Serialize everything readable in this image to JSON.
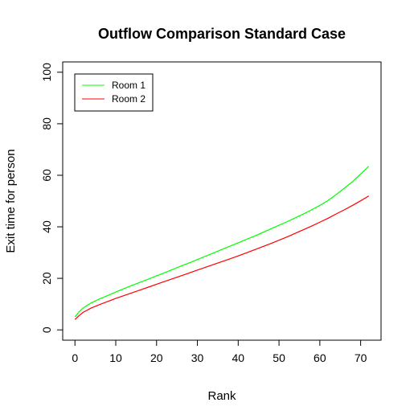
{
  "chart_data": {
    "type": "line",
    "title": "Outflow Comparison Standard Case",
    "xlabel": "Rank",
    "ylabel": "Exit time for person",
    "xlim": [
      -3,
      75
    ],
    "ylim": [
      -4,
      104
    ],
    "xticks": [
      0,
      10,
      20,
      30,
      40,
      50,
      60,
      70
    ],
    "yticks": [
      0,
      20,
      40,
      60,
      80,
      100
    ],
    "grid": false,
    "legend_position": "top-left",
    "series": [
      {
        "name": "Room 1",
        "color": "#00ff00",
        "x": [
          0,
          1,
          2,
          4,
          6,
          8,
          10,
          12,
          14,
          16,
          18,
          20,
          22,
          24,
          26,
          28,
          30,
          32,
          34,
          36,
          38,
          40,
          42,
          44,
          46,
          48,
          50,
          52,
          54,
          56,
          58,
          60,
          62,
          64,
          66,
          68,
          70,
          71,
          72
        ],
        "values": [
          5,
          7,
          8.5,
          10.5,
          12,
          13.3,
          14.7,
          16,
          17.3,
          18.5,
          19.7,
          21,
          22.2,
          23.5,
          24.8,
          26,
          27.3,
          28.6,
          29.9,
          31.2,
          32.5,
          33.8,
          35.1,
          36.4,
          37.8,
          39.2,
          40.6,
          42,
          43.5,
          45,
          46.6,
          48.3,
          50.2,
          52.5,
          55,
          57.5,
          60.5,
          62,
          63.5
        ]
      },
      {
        "name": "Room 2",
        "color": "#ff0000",
        "x": [
          0,
          1,
          2,
          4,
          6,
          8,
          10,
          12,
          14,
          16,
          18,
          20,
          22,
          24,
          26,
          28,
          30,
          32,
          34,
          36,
          38,
          40,
          42,
          44,
          46,
          48,
          50,
          52,
          54,
          56,
          58,
          60,
          62,
          64,
          66,
          68,
          70,
          72
        ],
        "values": [
          4,
          5.5,
          6.8,
          8.5,
          9.8,
          11,
          12.2,
          13.3,
          14.4,
          15.5,
          16.6,
          17.7,
          18.8,
          19.9,
          21,
          22.1,
          23.2,
          24.3,
          25.4,
          26.5,
          27.6,
          28.7,
          29.9,
          31.1,
          32.3,
          33.5,
          34.8,
          36.1,
          37.5,
          38.9,
          40.3,
          41.8,
          43.3,
          45,
          46.6,
          48.3,
          50.1,
          52
        ]
      }
    ]
  }
}
